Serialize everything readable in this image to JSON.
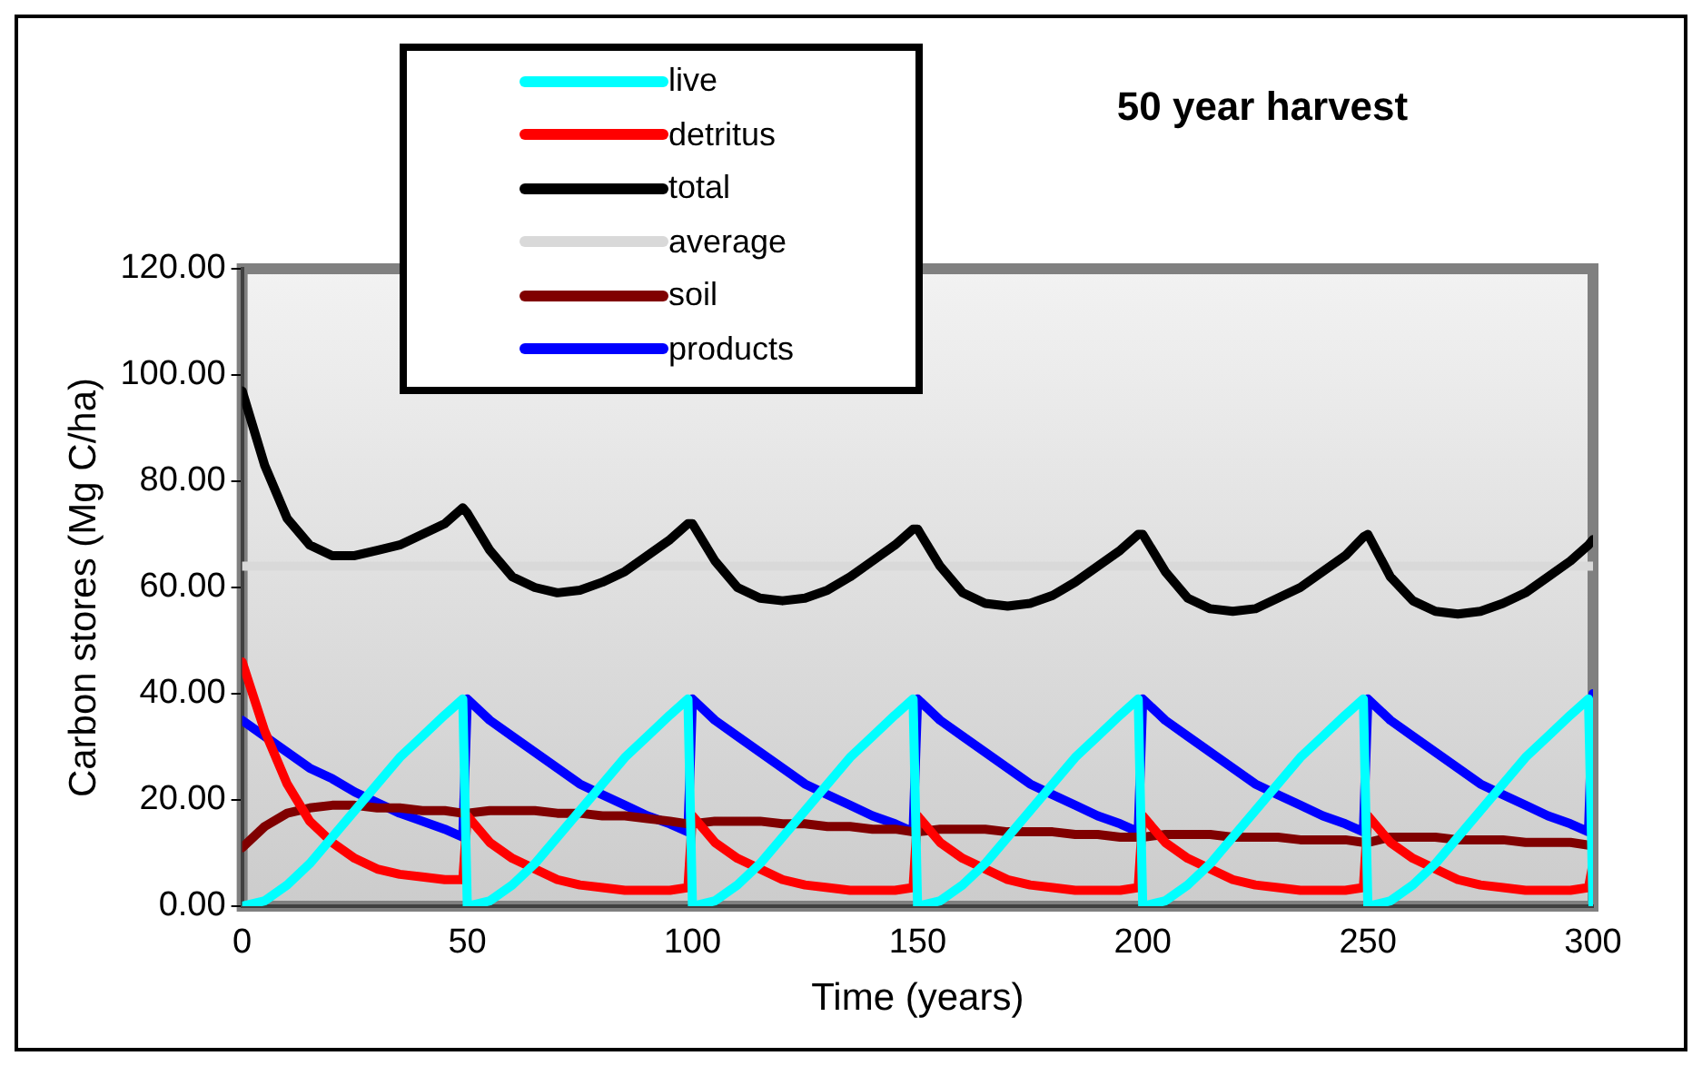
{
  "chart_data": {
    "type": "line",
    "title": "50 year harvest",
    "xlabel": "Time (years)",
    "ylabel": "Carbon stores (Mg C/ha)",
    "x": [
      0,
      5,
      10,
      15,
      20,
      25,
      30,
      35,
      40,
      45,
      49,
      50,
      55,
      60,
      65,
      70,
      75,
      80,
      85,
      90,
      95,
      99,
      100,
      105,
      110,
      115,
      120,
      125,
      130,
      135,
      140,
      145,
      149,
      150,
      155,
      160,
      165,
      170,
      175,
      180,
      185,
      190,
      195,
      199,
      200,
      205,
      210,
      215,
      220,
      225,
      230,
      235,
      240,
      245,
      249,
      250,
      255,
      260,
      265,
      270,
      275,
      280,
      285,
      290,
      295,
      299,
      300
    ],
    "series": [
      {
        "name": "live",
        "color": "#00ffff",
        "values": [
          0,
          1,
          4,
          8,
          13,
          18,
          23,
          28,
          32,
          36,
          39,
          0,
          1,
          4,
          8,
          13,
          18,
          23,
          28,
          32,
          36,
          39,
          0,
          1,
          4,
          8,
          13,
          18,
          23,
          28,
          32,
          36,
          39,
          0,
          1,
          4,
          8,
          13,
          18,
          23,
          28,
          32,
          36,
          39,
          0,
          1,
          4,
          8,
          13,
          18,
          23,
          28,
          32,
          36,
          39,
          0,
          1,
          4,
          8,
          13,
          18,
          23,
          28,
          32,
          36,
          39,
          0
        ]
      },
      {
        "name": "detritus",
        "color": "#ff0000",
        "values": [
          46,
          33,
          23,
          16,
          12,
          9,
          7,
          6,
          5.5,
          5,
          5,
          17,
          12,
          9,
          7,
          5,
          4,
          3.5,
          3,
          3,
          3,
          3.5,
          17,
          12,
          9,
          7,
          5,
          4,
          3.5,
          3,
          3,
          3,
          3.5,
          17,
          12,
          9,
          7,
          5,
          4,
          3.5,
          3,
          3,
          3,
          3.5,
          17,
          12,
          9,
          7,
          5,
          4,
          3.5,
          3,
          3,
          3,
          3.5,
          17,
          12,
          9,
          7,
          5,
          4,
          3.5,
          3,
          3,
          3,
          3.5,
          8
        ]
      },
      {
        "name": "total",
        "color": "#000000",
        "values": [
          97,
          83,
          73,
          68,
          66,
          66,
          67,
          68,
          70,
          72,
          75,
          74,
          67,
          62,
          60,
          59,
          59.5,
          61,
          63,
          66,
          69,
          72,
          72,
          65,
          60,
          58,
          57.5,
          58,
          59.5,
          62,
          65,
          68,
          71,
          71,
          64,
          59,
          57,
          56.5,
          57,
          58.5,
          61,
          64,
          67,
          70,
          70,
          63,
          58,
          56,
          55.5,
          56,
          58,
          60,
          63,
          66,
          69.5,
          70,
          62,
          57.5,
          55.5,
          55,
          55.5,
          57,
          59,
          62,
          65,
          68,
          69
        ]
      },
      {
        "name": "average",
        "color": "#d9d9d9",
        "values": [
          64,
          64,
          64,
          64,
          64,
          64,
          64,
          64,
          64,
          64,
          64,
          64,
          64,
          64,
          64,
          64,
          64,
          64,
          64,
          64,
          64,
          64,
          64,
          64,
          64,
          64,
          64,
          64,
          64,
          64,
          64,
          64,
          64,
          64,
          64,
          64,
          64,
          64,
          64,
          64,
          64,
          64,
          64,
          64,
          64,
          64,
          64,
          64,
          64,
          64,
          64,
          64,
          64,
          64,
          64,
          64,
          64,
          64,
          64,
          64,
          64,
          64,
          64,
          64,
          64,
          64,
          64
        ]
      },
      {
        "name": "soil",
        "color": "#800000",
        "values": [
          11,
          15,
          17.5,
          18.5,
          19,
          19,
          18.5,
          18.5,
          18,
          18,
          17.5,
          17.5,
          18,
          18,
          18,
          17.5,
          17.5,
          17,
          17,
          16.5,
          16,
          15.5,
          15.5,
          16,
          16,
          16,
          15.5,
          15.5,
          15,
          15,
          14.5,
          14.5,
          14,
          14,
          14.5,
          14.5,
          14.5,
          14,
          14,
          14,
          13.5,
          13.5,
          13,
          13,
          13,
          13.5,
          13.5,
          13.5,
          13,
          13,
          13,
          12.5,
          12.5,
          12.5,
          12,
          12,
          13,
          13,
          13,
          12.5,
          12.5,
          12.5,
          12,
          12,
          12,
          11.5,
          11.5
        ]
      },
      {
        "name": "products",
        "color": "#0000ff",
        "values": [
          35,
          32,
          29,
          26,
          24,
          21.5,
          19.5,
          17.5,
          16,
          14.5,
          13,
          39,
          35,
          32,
          29,
          26,
          23,
          21,
          19,
          17,
          15.5,
          14,
          39,
          35,
          32,
          29,
          26,
          23,
          21,
          19,
          17,
          15.5,
          14,
          39,
          35,
          32,
          29,
          26,
          23,
          21,
          19,
          17,
          15.5,
          14,
          39,
          35,
          32,
          29,
          26,
          23,
          21,
          19,
          17,
          15.5,
          14,
          39,
          35,
          32,
          29,
          26,
          23,
          21,
          19,
          17,
          15.5,
          14,
          40
        ]
      }
    ],
    "xlim": [
      0,
      300
    ],
    "xticks": [
      0,
      50,
      100,
      150,
      200,
      250,
      300
    ],
    "ylim": [
      0,
      120
    ],
    "yticks": [
      {
        "value": 0,
        "label": "0.00"
      },
      {
        "value": 20,
        "label": "20.00"
      },
      {
        "value": 40,
        "label": "40.00"
      },
      {
        "value": 60,
        "label": "60.00"
      },
      {
        "value": 80,
        "label": "80.00"
      },
      {
        "value": 100,
        "label": "100.00"
      },
      {
        "value": 120,
        "label": "120.00"
      }
    ],
    "grid": false,
    "legend": "top left",
    "marker": "none"
  }
}
